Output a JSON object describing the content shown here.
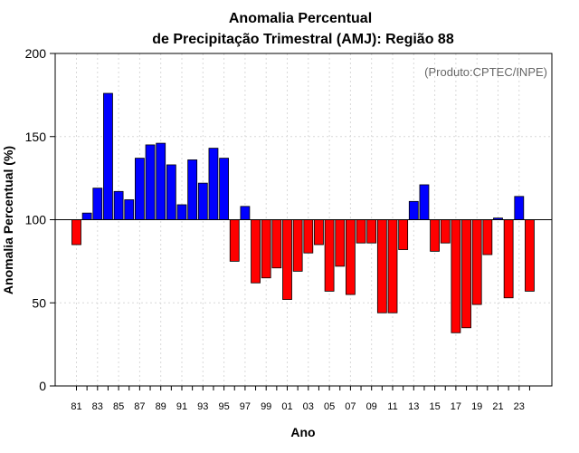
{
  "chart_data": {
    "type": "bar",
    "title": "Anomalia Percentual",
    "subtitle": "de Precipitação Trimestral (AMJ): Região 88",
    "xlabel": "Ano",
    "ylabel": "Anomalia Percentual (%)",
    "annotation": "(Produto:CPTEC/INPE)",
    "ylim": [
      0,
      200
    ],
    "yticks": [
      "0",
      "50",
      "100",
      "150",
      "200"
    ],
    "baseline": 100,
    "grid": true,
    "colors": {
      "above": "#0000ff",
      "below": "#ff0000"
    },
    "categories": [
      "81",
      "82",
      "83",
      "84",
      "85",
      "86",
      "87",
      "88",
      "89",
      "90",
      "91",
      "92",
      "93",
      "94",
      "95",
      "96",
      "97",
      "98",
      "99",
      "00",
      "01",
      "02",
      "03",
      "04",
      "05",
      "06",
      "07",
      "08",
      "09",
      "10",
      "11",
      "12",
      "13",
      "14",
      "15",
      "16",
      "17",
      "18",
      "19",
      "20",
      "21",
      "22",
      "23",
      "24"
    ],
    "xtick_labels": [
      "81",
      "83",
      "85",
      "87",
      "89",
      "91",
      "93",
      "95",
      "97",
      "99",
      "01",
      "03",
      "05",
      "07",
      "09",
      "11",
      "13",
      "15",
      "17",
      "19",
      "21",
      "23"
    ],
    "values": [
      85,
      104,
      119,
      176,
      117,
      112,
      137,
      145,
      146,
      133,
      109,
      136,
      122,
      143,
      137,
      75,
      108,
      62,
      65,
      71,
      52,
      69,
      80,
      85,
      57,
      72,
      55,
      86,
      86,
      44,
      44,
      82,
      111,
      121,
      81,
      86,
      32,
      35,
      49,
      79,
      101,
      53,
      114,
      57
    ]
  }
}
